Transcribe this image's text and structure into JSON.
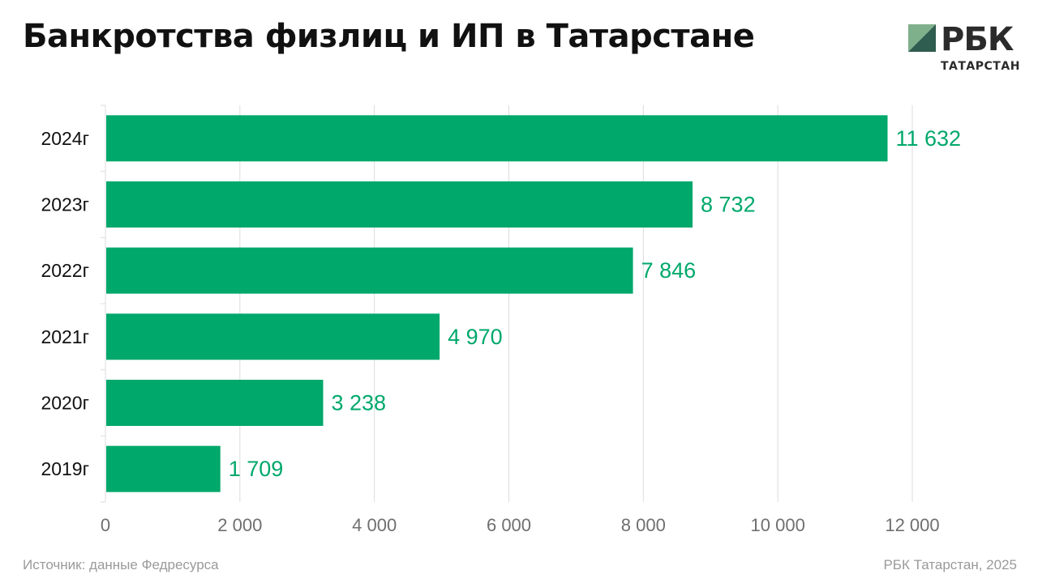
{
  "title": "Банкротства физлиц и ИП в Татарстане",
  "logo": {
    "main": "РБК",
    "sub": "ТАТАРСТАН"
  },
  "footer": {
    "source": "Источник: данные Федресурса",
    "credit": "РБК Татарстан, 2025"
  },
  "colors": {
    "bar": "#00a86b",
    "value_label": "#00a86b",
    "grid": "#dcdcdc"
  },
  "chart_data": {
    "type": "bar",
    "orientation": "horizontal",
    "categories": [
      "2024г",
      "2023г",
      "2022г",
      "2021г",
      "2020г",
      "2019г"
    ],
    "values": [
      11632,
      8732,
      7846,
      4970,
      3238,
      1709
    ],
    "value_labels": [
      "11 632",
      "8 732",
      "7 846",
      "4 970",
      "3 238",
      "1 709"
    ],
    "xlim": [
      0,
      12000
    ],
    "x_ticks": [
      0,
      2000,
      4000,
      6000,
      8000,
      10000,
      12000
    ],
    "x_tick_labels": [
      "0",
      "2 000",
      "4 000",
      "6 000",
      "8 000",
      "10 000",
      "12 000"
    ],
    "xlabel": "",
    "ylabel": "",
    "grid": true,
    "legend": "none"
  }
}
